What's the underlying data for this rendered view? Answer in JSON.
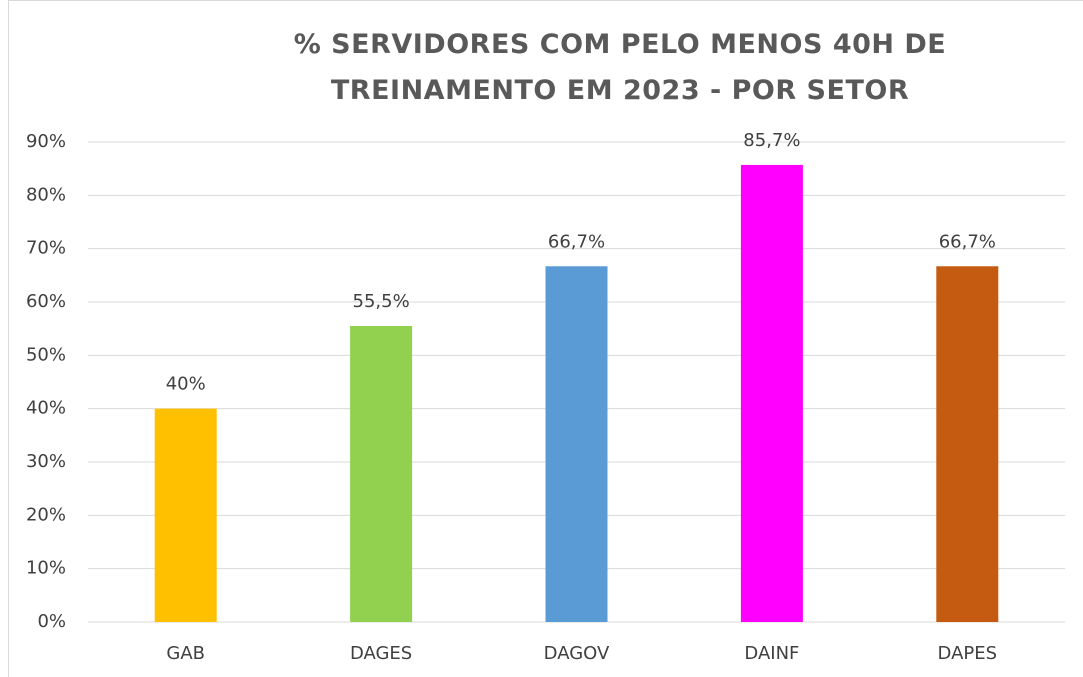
{
  "chart_data": {
    "type": "bar",
    "title": "% SERVIDORES COM PELO MENOS 40H DE TREINAMENTO EM 2023 - POR SETOR",
    "categories": [
      "GAB",
      "DAGES",
      "DAGOV",
      "DAINF",
      "DAPES"
    ],
    "values": [
      40,
      55.5,
      66.7,
      85.7,
      66.7
    ],
    "value_labels": [
      "40%",
      "55,5%",
      "66,7%",
      "85,7%",
      "66,7%"
    ],
    "colors": [
      "#FFC000",
      "#92D050",
      "#5B9BD5",
      "#FF00FF",
      "#C55A11"
    ],
    "ylim": [
      0,
      90
    ],
    "yticks": [
      {
        "value": 0,
        "label": "0%"
      },
      {
        "value": 10,
        "label": "10%"
      },
      {
        "value": 20,
        "label": "20%"
      },
      {
        "value": 30,
        "label": "30%"
      },
      {
        "value": 40,
        "label": "40%"
      },
      {
        "value": 50,
        "label": "50%"
      },
      {
        "value": 60,
        "label": "60%"
      },
      {
        "value": 70,
        "label": "70%"
      },
      {
        "value": 80,
        "label": "80%"
      },
      {
        "value": 90,
        "label": "90%"
      }
    ],
    "grid": true
  }
}
